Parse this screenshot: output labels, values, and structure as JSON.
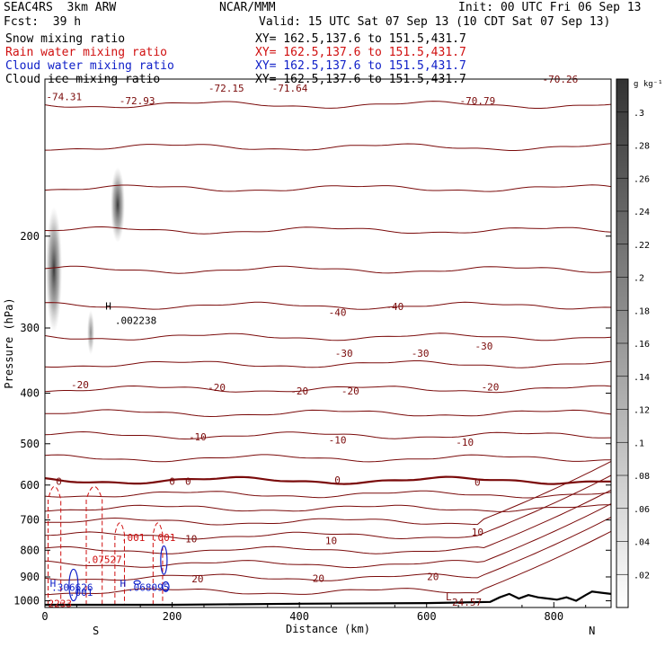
{
  "header": {
    "title_left": "SEAC4RS  3km ARW",
    "title_center": "NCAR/MMM",
    "init": "Init: 00 UTC Fri 06 Sep 13",
    "fcst": "Fcst:  39 h",
    "valid": "Valid: 15 UTC Sat 07 Sep 13 (10 CDT Sat 07 Sep 13)",
    "fields": [
      {
        "name": "Snow mixing ratio",
        "xy": "XY= 162.5,137.6 to 151.5,431.7",
        "color": "#000000"
      },
      {
        "name": "Rain water mixing ratio",
        "xy": "XY= 162.5,137.6 to 151.5,431.7",
        "color": "#d01010"
      },
      {
        "name": "Cloud water mixing ratio",
        "xy": "XY= 162.5,137.6 to 151.5,431.7",
        "color": "#1020c8"
      },
      {
        "name": "Cloud ice mixing ratio",
        "xy": "XY= 162.5,137.6 to 151.5,431.7",
        "color": "#000000"
      }
    ]
  },
  "chart_data": {
    "type": "cross-section",
    "xlabel": "Distance (km)",
    "ylabel": "Pressure (hPa)",
    "xlim": [
      0,
      890
    ],
    "ylim": [
      1030,
      100
    ],
    "x_ticks": [
      0,
      200,
      400,
      600,
      800
    ],
    "y_ticks": [
      200,
      300,
      400,
      500,
      600,
      700,
      800,
      900,
      1000
    ],
    "x_end_labels": {
      "left": "S",
      "right": "N"
    },
    "colorbar": {
      "unit": "g kg⁻¹",
      "ticks": [
        ".02",
        ".04",
        ".06",
        ".08",
        ".1",
        ".12",
        ".14",
        ".16",
        ".18",
        ".2",
        ".22",
        ".24",
        ".26",
        ".28",
        ".3"
      ]
    },
    "temperature_contours": {
      "color": "#7a0a0a",
      "labels": [
        {
          "text": "-74.31",
          "x": 30,
          "p": 108
        },
        {
          "text": "-72.93",
          "x": 145,
          "p": 110
        },
        {
          "text": "-72.15",
          "x": 285,
          "p": 104
        },
        {
          "text": "-71.64",
          "x": 385,
          "p": 104
        },
        {
          "text": "-70.79",
          "x": 680,
          "p": 110
        },
        {
          "text": "-70.26",
          "x": 810,
          "p": 100
        },
        {
          "text": "-40",
          "x": 460,
          "p": 280
        },
        {
          "text": "-40",
          "x": 550,
          "p": 273
        },
        {
          "text": "-30",
          "x": 470,
          "p": 335
        },
        {
          "text": "-30",
          "x": 590,
          "p": 335
        },
        {
          "text": "-30",
          "x": 690,
          "p": 325
        },
        {
          "text": "-20",
          "x": 55,
          "p": 385
        },
        {
          "text": "-20",
          "x": 270,
          "p": 390
        },
        {
          "text": "-20",
          "x": 400,
          "p": 396
        },
        {
          "text": "-20",
          "x": 480,
          "p": 396
        },
        {
          "text": "-20",
          "x": 700,
          "p": 389
        },
        {
          "text": "-10",
          "x": 240,
          "p": 485
        },
        {
          "text": "-10",
          "x": 460,
          "p": 492
        },
        {
          "text": "-10",
          "x": 660,
          "p": 496
        },
        {
          "text": "0",
          "x": 22,
          "p": 590
        },
        {
          "text": "0",
          "x": 200,
          "p": 590
        },
        {
          "text": "0",
          "x": 225,
          "p": 590
        },
        {
          "text": "0",
          "x": 460,
          "p": 587
        },
        {
          "text": "0",
          "x": 680,
          "p": 592
        },
        {
          "text": "10",
          "x": 230,
          "p": 761
        },
        {
          "text": "10",
          "x": 450,
          "p": 766
        },
        {
          "text": "10",
          "x": 680,
          "p": 738
        },
        {
          "text": "20",
          "x": 240,
          "p": 908
        },
        {
          "text": "20",
          "x": 430,
          "p": 905
        },
        {
          "text": "20",
          "x": 610,
          "p": 898
        }
      ]
    },
    "rain_water_labels": [
      {
        "text": ".001",
        "x": 120,
        "p": 756
      },
      {
        "text": ".001",
        "x": 168,
        "p": 756
      },
      {
        "text": ".07527",
        "x": 65,
        "p": 833
      },
      {
        "text": "2233",
        "x": 5,
        "p": 1012
      }
    ],
    "cloud_water_labels": [
      {
        "text": ".306626",
        "x": 10,
        "p": 942
      },
      {
        "text": ".001",
        "x": 38,
        "p": 962
      },
      {
        "text": ".068095",
        "x": 130,
        "p": 942
      }
    ],
    "snow_labels": [
      {
        "text": ".002238",
        "x": 110,
        "p": 290
      }
    ],
    "extrema_markers": [
      {
        "text": "H",
        "x": 95,
        "p": 272,
        "color": "#000000"
      },
      {
        "text": "H",
        "x": 8,
        "p": 925,
        "color": "#1020c8"
      },
      {
        "text": "H",
        "x": 118,
        "p": 925,
        "color": "#1020c8"
      },
      {
        "text": "L",
        "x": 630,
        "p": 983,
        "color": "#7a0a0a"
      }
    ],
    "surface_low_label": {
      "text": "24.57",
      "x": 640,
      "p": 1005
    }
  }
}
